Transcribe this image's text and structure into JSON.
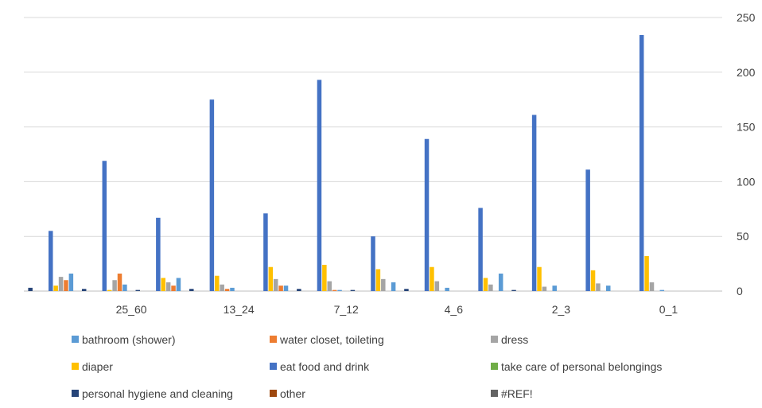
{
  "chart_data": {
    "type": "bar",
    "title": "",
    "xlabel": "",
    "ylabel": "",
    "ylim": [
      0,
      250
    ],
    "y_ticks": [
      0,
      50,
      100,
      150,
      200,
      250
    ],
    "y_axis_side": "right",
    "grid": true,
    "legend_position": "bottom",
    "categories": [
      "",
      "25_60",
      "13_24",
      "7_12",
      "4_6",
      "2_3",
      "0_1"
    ],
    "series": [
      {
        "name": "personal hygiene and cleaning",
        "color": "#264478",
        "values": [
          3,
          2,
          1,
          2,
          0,
          2,
          1
        ]
      },
      {
        "name": "other",
        "color": "#9E480E",
        "values": [
          0,
          0,
          0,
          0,
          0,
          0,
          0
        ]
      },
      {
        "name": "#REF!",
        "color": "#636363",
        "values": [
          0,
          0,
          0,
          0,
          0,
          0,
          0
        ]
      },
      {
        "name": "take care of personal belongings",
        "color": "#70AD47",
        "values": [
          0,
          0,
          0,
          0,
          0,
          0,
          0
        ]
      },
      {
        "name": "eat food and drink",
        "color": "#4472C4",
        "values": [
          55,
          119,
          67,
          175,
          71,
          193,
          50
        ]
      },
      {
        "name": "diaper",
        "color": "#FFC000",
        "values": [
          5,
          1,
          12,
          14,
          22,
          24,
          20
        ]
      },
      {
        "name": "dress",
        "color": "#A5A5A5",
        "values": [
          13,
          10,
          8,
          6,
          11,
          9,
          11
        ]
      },
      {
        "name": "water closet, toileting",
        "color": "#ED7D31",
        "values": [
          10,
          16,
          5,
          2,
          5,
          1,
          0
        ]
      },
      {
        "name": "bathroom (shower)",
        "color": "#5B9BD5",
        "values": [
          16,
          6,
          12,
          3,
          5,
          1,
          8
        ]
      }
    ],
    "trailing_groups": {
      "note_categories_unlabeled_right": true,
      "series_values": {
        "personal hygiene and cleaning": [
          2,
          0,
          1,
          0,
          0,
          0
        ],
        "other": [
          0,
          0,
          0,
          0,
          0,
          0
        ],
        "#REF!": [
          0,
          0,
          0,
          0,
          0,
          0
        ],
        "take care of personal belongings": [
          0,
          0,
          0,
          0,
          0,
          0
        ],
        "eat food and drink": [
          139,
          76,
          161,
          111,
          234,
          0
        ],
        "diaper": [
          22,
          12,
          22,
          19,
          32,
          0
        ],
        "dress": [
          9,
          6,
          4,
          7,
          8,
          0
        ],
        "water closet, toileting": [
          0,
          0,
          0,
          0,
          0,
          0
        ],
        "bathroom (shower)": [
          3,
          16,
          5,
          5,
          1,
          0
        ]
      }
    },
    "legend_order": [
      "bathroom (shower)",
      "water closet, toileting",
      "dress",
      "diaper",
      "eat food and drink",
      "take care of personal belongings",
      "personal hygiene and cleaning",
      "other",
      "#REF!"
    ]
  }
}
